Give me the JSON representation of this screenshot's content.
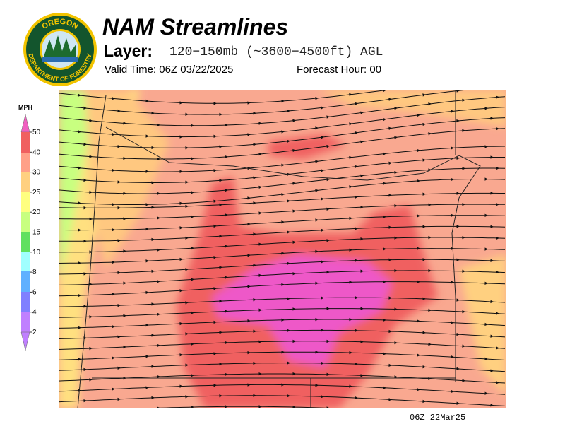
{
  "logo": {
    "top_text": "OREGON",
    "bottom_text": "DEPARTMENT OF FORESTRY"
  },
  "header": {
    "title": "NAM Streamlines",
    "layer_label": "Layer:",
    "layer_value": "120−150mb (~3600−4500ft) AGL",
    "valid_time": "Valid Time: 06Z 03/22/2025",
    "forecast_hour": "Forecast Hour: 00"
  },
  "legend": {
    "unit": "MPH",
    "ticks": [
      50,
      40,
      30,
      25,
      20,
      15,
      10,
      8,
      6,
      4,
      2
    ]
  },
  "footer": {
    "stamp": "06Z 22Mar25"
  }
}
